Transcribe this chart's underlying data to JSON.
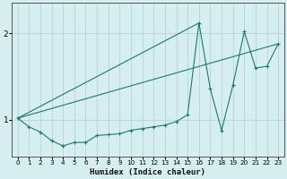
{
  "xlabel": "Humidex (Indice chaleur)",
  "bg_color": "#d6eef0",
  "line_color": "#1a7a6e",
  "grid_color": "#b8d8dc",
  "xlim": [
    -0.5,
    23.5
  ],
  "ylim": [
    0.58,
    2.35
  ],
  "yticks": [
    1,
    2
  ],
  "xticks": [
    0,
    1,
    2,
    3,
    4,
    5,
    6,
    7,
    8,
    9,
    10,
    11,
    12,
    13,
    14,
    15,
    16,
    17,
    18,
    19,
    20,
    21,
    22,
    23
  ],
  "line1_x": [
    0,
    1,
    2,
    3,
    4,
    5,
    6,
    7,
    8,
    9,
    10,
    11,
    12,
    13,
    14,
    15,
    16,
    17,
    18,
    19,
    20,
    21,
    22,
    23
  ],
  "line1_y": [
    1.02,
    0.92,
    0.86,
    0.76,
    0.7,
    0.74,
    0.74,
    0.82,
    0.83,
    0.84,
    0.88,
    0.9,
    0.92,
    0.94,
    0.98,
    1.06,
    2.12,
    1.36,
    0.88,
    1.4,
    2.02,
    1.6,
    1.62,
    1.88
  ],
  "line2_x": [
    0,
    23
  ],
  "line2_y": [
    1.02,
    1.88
  ],
  "line3_x": [
    0,
    16
  ],
  "line3_y": [
    1.02,
    2.12
  ]
}
